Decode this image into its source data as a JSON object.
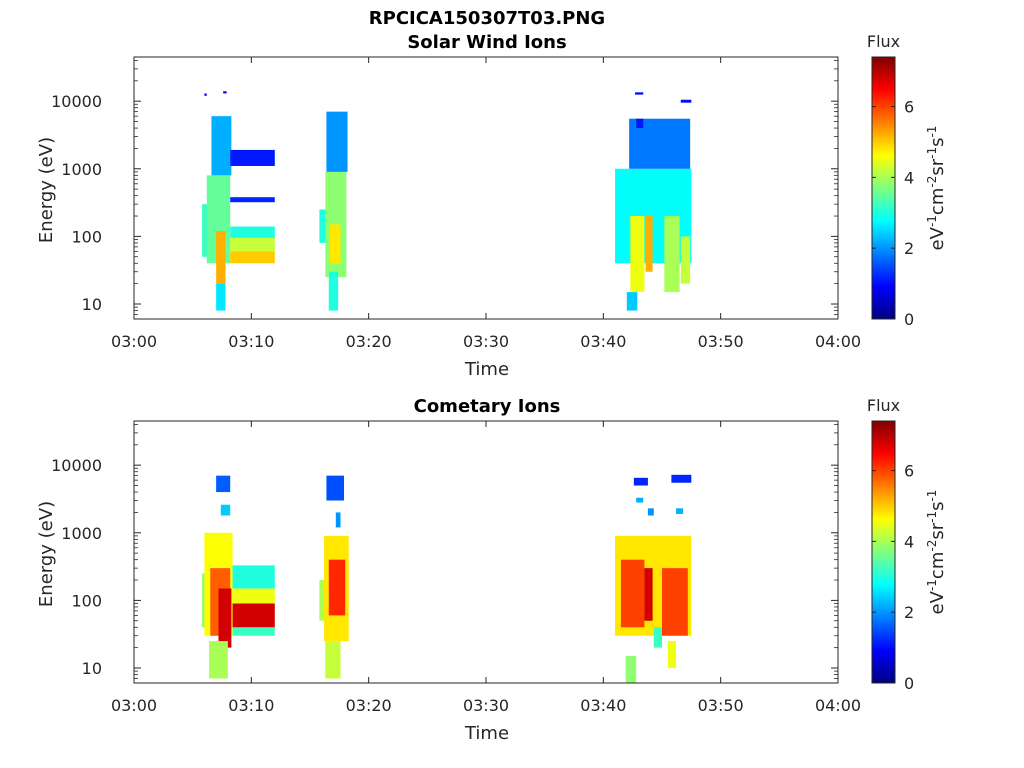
{
  "figure": {
    "title": "RPCICA150307T03.PNG"
  },
  "colormap": [
    "#00007f",
    "#0000ff",
    "#007fff",
    "#00ffff",
    "#7fff7f",
    "#ffff00",
    "#ff7f00",
    "#ff0000",
    "#7f0000"
  ],
  "chart_data": [
    {
      "type": "heatmap",
      "title": "Solar Wind Ions",
      "xlabel": "Time",
      "ylabel": "Energy (eV)",
      "x_ticks": [
        "03:00",
        "03:10",
        "03:20",
        "03:30",
        "03:40",
        "03:50",
        "04:00"
      ],
      "xlim": [
        "03:00",
        "04:00"
      ],
      "y_ticks": [
        "10",
        "100",
        "1000",
        "10000"
      ],
      "ylim": [
        6,
        45000
      ],
      "y_scale": "log",
      "grid": false,
      "colorbar": {
        "title": "Flux",
        "label": "eV-1cm-2sr-1s-1",
        "ticks": [
          "0",
          "2",
          "4",
          "6"
        ],
        "range": [
          0,
          7.4
        ]
      },
      "regions": [
        {
          "x": [
            5.8,
            6.5
          ],
          "y": [
            50,
            300
          ],
          "value": 3.2
        },
        {
          "x": [
            6.2,
            8.2
          ],
          "y": [
            40,
            800
          ],
          "value": 3.5
        },
        {
          "x": [
            7.0,
            7.8
          ],
          "y": [
            20,
            120
          ],
          "value": 5.2
        },
        {
          "x": [
            7.0,
            7.8
          ],
          "y": [
            8,
            20
          ],
          "value": 2.6
        },
        {
          "x": [
            6.6,
            8.3
          ],
          "y": [
            800,
            6000
          ],
          "value": 2.2
        },
        {
          "x": [
            8.2,
            12.0
          ],
          "y": [
            40,
            60
          ],
          "value": 5.0
        },
        {
          "x": [
            8.2,
            12.0
          ],
          "y": [
            60,
            95
          ],
          "value": 4.2
        },
        {
          "x": [
            8.2,
            12.0
          ],
          "y": [
            95,
            140
          ],
          "value": 3.0
        },
        {
          "x": [
            8.2,
            12.0
          ],
          "y": [
            1100,
            1900
          ],
          "value": 1.1
        },
        {
          "x": [
            8.2,
            12.0
          ],
          "y": [
            320,
            380
          ],
          "value": 1.2
        },
        {
          "x": [
            6.0,
            6.2
          ],
          "y": [
            12000,
            13000
          ],
          "value": 1.0
        },
        {
          "x": [
            7.6,
            7.9
          ],
          "y": [
            13000,
            14000
          ],
          "value": 1.0
        },
        {
          "x": [
            15.8,
            16.4
          ],
          "y": [
            80,
            250
          ],
          "value": 3.0
        },
        {
          "x": [
            16.3,
            18.1
          ],
          "y": [
            25,
            900
          ],
          "value": 3.8
        },
        {
          "x": [
            16.7,
            17.6
          ],
          "y": [
            40,
            150
          ],
          "value": 4.8
        },
        {
          "x": [
            16.6,
            17.4
          ],
          "y": [
            8,
            30
          ],
          "value": 3.0
        },
        {
          "x": [
            16.4,
            18.2
          ],
          "y": [
            900,
            7000
          ],
          "value": 2.0
        },
        {
          "x": [
            41.0,
            47.5
          ],
          "y": [
            40,
            1000
          ],
          "value": 2.8
        },
        {
          "x": [
            42.3,
            43.5
          ],
          "y": [
            15,
            200
          ],
          "value": 4.5
        },
        {
          "x": [
            43.6,
            44.2
          ],
          "y": [
            30,
            200
          ],
          "value": 5.2
        },
        {
          "x": [
            45.2,
            46.5
          ],
          "y": [
            15,
            200
          ],
          "value": 4.0
        },
        {
          "x": [
            46.6,
            47.4
          ],
          "y": [
            20,
            100
          ],
          "value": 4.2
        },
        {
          "x": [
            42.2,
            47.4
          ],
          "y": [
            1000,
            5500
          ],
          "value": 1.8
        },
        {
          "x": [
            42.0,
            42.9
          ],
          "y": [
            8,
            15
          ],
          "value": 2.4
        },
        {
          "x": [
            42.8,
            43.4
          ],
          "y": [
            4000,
            5500
          ],
          "value": 1.1
        },
        {
          "x": [
            46.6,
            47.5
          ],
          "y": [
            9500,
            10500
          ],
          "value": 1.0
        },
        {
          "x": [
            42.7,
            43.4
          ],
          "y": [
            12500,
            13500
          ],
          "value": 1.0
        }
      ]
    },
    {
      "type": "heatmap",
      "title": "Cometary Ions",
      "xlabel": "Time",
      "ylabel": "Energy (eV)",
      "x_ticks": [
        "03:00",
        "03:10",
        "03:20",
        "03:30",
        "03:40",
        "03:50",
        "04:00"
      ],
      "xlim": [
        "03:00",
        "04:00"
      ],
      "y_ticks": [
        "10",
        "100",
        "1000",
        "10000"
      ],
      "ylim": [
        6,
        45000
      ],
      "y_scale": "log",
      "grid": false,
      "colorbar": {
        "title": "Flux",
        "label": "eV-1cm-2sr-1s-1",
        "ticks": [
          "0",
          "2",
          "4",
          "6"
        ],
        "range": [
          0,
          7.4
        ]
      },
      "regions": [
        {
          "x": [
            5.8,
            6.4
          ],
          "y": [
            40,
            250
          ],
          "value": 3.8
        },
        {
          "x": [
            6.0,
            8.4
          ],
          "y": [
            30,
            1000
          ],
          "value": 4.6
        },
        {
          "x": [
            6.5,
            8.2
          ],
          "y": [
            30,
            300
          ],
          "value": 5.8
        },
        {
          "x": [
            7.2,
            8.3
          ],
          "y": [
            20,
            150
          ],
          "value": 6.8
        },
        {
          "x": [
            6.4,
            8.0
          ],
          "y": [
            7,
            25
          ],
          "value": 4.0
        },
        {
          "x": [
            8.4,
            12.0
          ],
          "y": [
            30,
            40
          ],
          "value": 3.2
        },
        {
          "x": [
            8.4,
            12.0
          ],
          "y": [
            40,
            90
          ],
          "value": 6.8
        },
        {
          "x": [
            8.4,
            12.0
          ],
          "y": [
            90,
            150
          ],
          "value": 4.5
        },
        {
          "x": [
            8.4,
            12.0
          ],
          "y": [
            150,
            330
          ],
          "value": 3.0
        },
        {
          "x": [
            7.0,
            8.2
          ],
          "y": [
            4000,
            7000
          ],
          "value": 1.6
        },
        {
          "x": [
            7.4,
            8.2
          ],
          "y": [
            1800,
            2600
          ],
          "value": 2.4
        },
        {
          "x": [
            15.8,
            16.3
          ],
          "y": [
            50,
            200
          ],
          "value": 4.0
        },
        {
          "x": [
            16.2,
            18.3
          ],
          "y": [
            25,
            900
          ],
          "value": 4.8
        },
        {
          "x": [
            16.6,
            18.0
          ],
          "y": [
            60,
            400
          ],
          "value": 6.2
        },
        {
          "x": [
            16.3,
            17.6
          ],
          "y": [
            7,
            25
          ],
          "value": 4.2
        },
        {
          "x": [
            16.4,
            17.9
          ],
          "y": [
            3000,
            7000
          ],
          "value": 1.5
        },
        {
          "x": [
            17.2,
            17.6
          ],
          "y": [
            1200,
            2000
          ],
          "value": 2.0
        },
        {
          "x": [
            41.0,
            47.5
          ],
          "y": [
            30,
            900
          ],
          "value": 4.8
        },
        {
          "x": [
            41.5,
            43.5
          ],
          "y": [
            40,
            400
          ],
          "value": 6.0
        },
        {
          "x": [
            43.5,
            44.2
          ],
          "y": [
            50,
            300
          ],
          "value": 6.8
        },
        {
          "x": [
            45.0,
            47.2
          ],
          "y": [
            30,
            300
          ],
          "value": 6.0
        },
        {
          "x": [
            41.9,
            42.8
          ],
          "y": [
            6,
            15
          ],
          "value": 3.8
        },
        {
          "x": [
            44.3,
            45.0
          ],
          "y": [
            20,
            40
          ],
          "value": 3.2
        },
        {
          "x": [
            45.5,
            46.2
          ],
          "y": [
            10,
            25
          ],
          "value": 4.5
        },
        {
          "x": [
            42.6,
            43.8
          ],
          "y": [
            5000,
            6500
          ],
          "value": 1.2
        },
        {
          "x": [
            45.8,
            47.5
          ],
          "y": [
            5500,
            7200
          ],
          "value": 1.2
        },
        {
          "x": [
            42.8,
            43.4
          ],
          "y": [
            2800,
            3300
          ],
          "value": 2.2
        },
        {
          "x": [
            43.8,
            44.3
          ],
          "y": [
            1800,
            2300
          ],
          "value": 2.0
        },
        {
          "x": [
            46.2,
            46.8
          ],
          "y": [
            1900,
            2300
          ],
          "value": 2.2
        }
      ]
    }
  ]
}
